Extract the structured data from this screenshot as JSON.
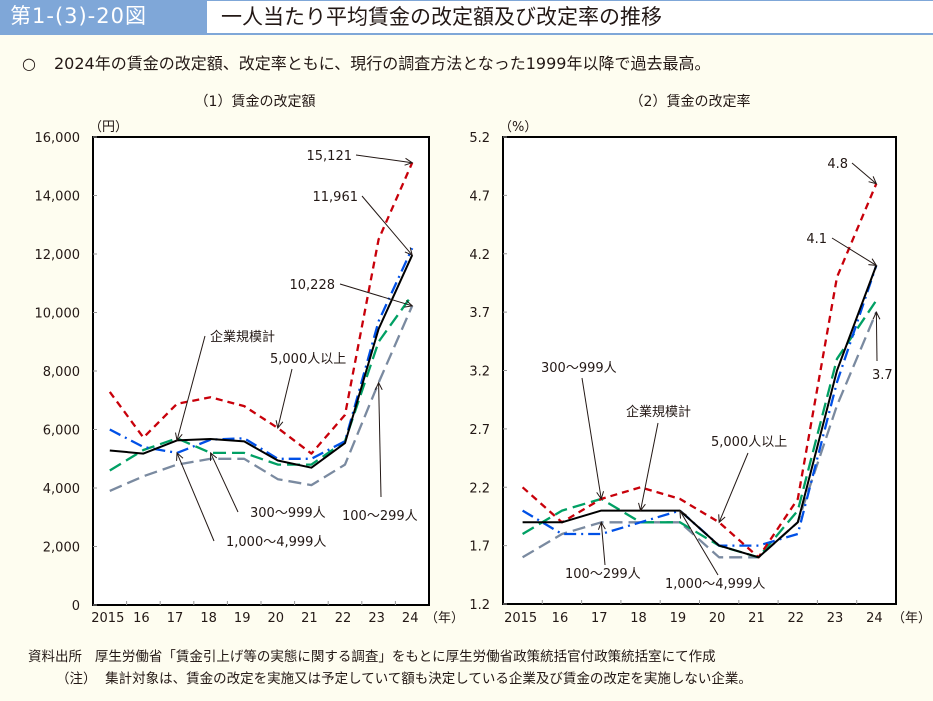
{
  "header": {
    "figure_number": "第1-(3)-20図",
    "title": "一人当たり平均賃金の改定額及び改定率の推移"
  },
  "summary": {
    "bullet": "○",
    "text": "2024年の賃金の改定額、改定率ともに、現行の調査方法となった1999年以降で過去最高。"
  },
  "colors": {
    "header_bg": "#7fa7d8",
    "page_bg": "#fefdf0",
    "total": "#000000",
    "over5000": "#c8000a",
    "r1000_4999": "#0050e6",
    "r300_999": "#00a064",
    "r100_299": "#7a8aa0"
  },
  "chart_data": [
    {
      "type": "line",
      "title": "（1）賃金の改定額",
      "ylabel": "（円）",
      "xlabel": "（年）",
      "categories": [
        "2015",
        "16",
        "17",
        "18",
        "19",
        "20",
        "21",
        "22",
        "23",
        "24"
      ],
      "ylim": [
        0,
        16000
      ],
      "yticks": [
        0,
        2000,
        4000,
        6000,
        8000,
        10000,
        12000,
        14000,
        16000
      ],
      "ytick_labels": [
        "0",
        "2,000",
        "4,000",
        "6,000",
        "8,000",
        "10,000",
        "12,000",
        "14,000",
        "16,000"
      ],
      "grid": false,
      "series": [
        {
          "name": "企業規模計",
          "key": "total",
          "style": "solid",
          "values": [
            5282,
            5176,
            5627,
            5675,
            5592,
            4940,
            4694,
            5534,
            9437,
            11961
          ]
        },
        {
          "name": "5,000人以上",
          "key": "over5000",
          "style": "dash-short",
          "values": [
            7286,
            5724,
            6880,
            7100,
            6800,
            6050,
            5175,
            6500,
            12500,
            15121
          ]
        },
        {
          "name": "1,000～4,999人",
          "key": "r1000_4999",
          "style": "dash-dot",
          "values": [
            6000,
            5400,
            5200,
            5650,
            5700,
            5000,
            5000,
            5600,
            9700,
            12200
          ]
        },
        {
          "name": "300～999人",
          "key": "r300_999",
          "style": "dash-long",
          "values": [
            4600,
            5300,
            5700,
            5200,
            5200,
            4800,
            4800,
            5600,
            9000,
            10600
          ]
        },
        {
          "name": "100～299人",
          "key": "r100_299",
          "style": "dash-long",
          "values": [
            3900,
            4400,
            4800,
            5000,
            5000,
            4300,
            4100,
            4800,
            7600,
            10228
          ]
        }
      ],
      "annotations": [
        {
          "text": "15,121",
          "series": "over5000",
          "index": 9
        },
        {
          "text": "11,961",
          "series": "total",
          "index": 9
        },
        {
          "text": "10,228",
          "series": "r100_299",
          "index": 9
        },
        {
          "text": "企業規模計",
          "series": "total",
          "index": 2
        },
        {
          "text": "5,000人以上",
          "series": "over5000",
          "index": 5
        },
        {
          "text": "300～999人",
          "series": "r300_999",
          "index": 3
        },
        {
          "text": "1,000～4,999人",
          "series": "r1000_4999",
          "index": 2
        },
        {
          "text": "100～299人",
          "series": "r100_299",
          "index": 8
        }
      ]
    },
    {
      "type": "line",
      "title": "（2）賃金の改定率",
      "ylabel": "（%）",
      "xlabel": "（年）",
      "categories": [
        "2015",
        "16",
        "17",
        "18",
        "19",
        "20",
        "21",
        "22",
        "23",
        "24"
      ],
      "ylim": [
        1.2,
        5.2
      ],
      "yticks": [
        1.2,
        1.7,
        2.2,
        2.7,
        3.2,
        3.7,
        4.2,
        4.7,
        5.2
      ],
      "ytick_labels": [
        "1.2",
        "1.7",
        "2.2",
        "2.7",
        "3.2",
        "3.7",
        "4.2",
        "4.7",
        "5.2"
      ],
      "grid": false,
      "series": [
        {
          "name": "企業規模計",
          "key": "total",
          "style": "solid",
          "values": [
            1.9,
            1.9,
            2.0,
            2.0,
            2.0,
            1.7,
            1.6,
            1.9,
            3.2,
            4.1
          ]
        },
        {
          "name": "5,000人以上",
          "key": "over5000",
          "style": "dash-short",
          "values": [
            2.2,
            1.9,
            2.1,
            2.2,
            2.1,
            1.9,
            1.6,
            2.1,
            4.0,
            4.8
          ]
        },
        {
          "name": "1,000～4,999人",
          "key": "r1000_4999",
          "style": "dash-dot",
          "values": [
            2.0,
            1.8,
            1.8,
            1.9,
            2.0,
            1.7,
            1.7,
            1.8,
            3.1,
            4.1
          ]
        },
        {
          "name": "300～999人",
          "key": "r300_999",
          "style": "dash-long",
          "values": [
            1.8,
            2.0,
            2.1,
            1.9,
            1.9,
            1.7,
            1.6,
            2.0,
            3.3,
            3.8
          ]
        },
        {
          "name": "100～299人",
          "key": "r100_299",
          "style": "dash-long",
          "values": [
            1.6,
            1.8,
            1.9,
            1.9,
            1.9,
            1.6,
            1.6,
            1.9,
            2.9,
            3.7
          ]
        }
      ],
      "annotations": [
        {
          "text": "4.8",
          "series": "over5000",
          "index": 9
        },
        {
          "text": "4.1",
          "series": "total",
          "index": 9
        },
        {
          "text": "3.7",
          "series": "r100_299",
          "index": 9
        },
        {
          "text": "300～999人",
          "series": "r300_999",
          "index": 2
        },
        {
          "text": "企業規模計",
          "series": "total",
          "index": 3
        },
        {
          "text": "5,000人以上",
          "series": "over5000",
          "index": 5
        },
        {
          "text": "100～299人",
          "series": "r100_299",
          "index": 2
        },
        {
          "text": "1,000～4,999人",
          "series": "r1000_4999",
          "index": 4
        }
      ]
    }
  ],
  "footnotes": {
    "source_label": "資料出所",
    "source_text": "厚生労働省「賃金引上げ等の実態に関する調査」をもとに厚生労働省政策統括官付政策統括室にて作成",
    "note_label": "（注）",
    "note_text": "集計対象は、賃金の改定を実施又は予定していて額も決定している企業及び賃金の改定を実施しない企業。"
  }
}
